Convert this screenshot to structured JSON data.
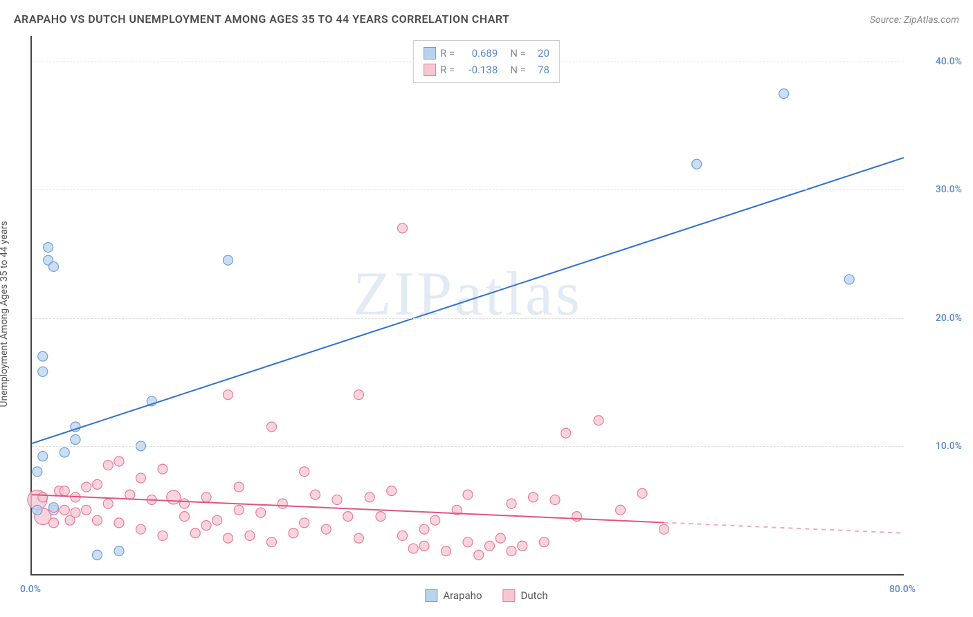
{
  "title": "ARAPAHO VS DUTCH UNEMPLOYMENT AMONG AGES 35 TO 44 YEARS CORRELATION CHART",
  "source": "Source: ZipAtlas.com",
  "ylabel": "Unemployment Among Ages 35 to 44 years",
  "watermark": "ZIPatlas",
  "chart": {
    "type": "scatter",
    "background_color": "#ffffff",
    "grid_color": "#dddddd",
    "axis_color": "#444444",
    "tick_color": "#5b8ac7",
    "xlim": [
      0,
      80
    ],
    "ylim": [
      0,
      42
    ],
    "xticks": [
      {
        "v": 0,
        "label": "0.0%"
      },
      {
        "v": 80,
        "label": "80.0%"
      }
    ],
    "yticks": [
      {
        "v": 10,
        "label": "10.0%"
      },
      {
        "v": 20,
        "label": "20.0%"
      },
      {
        "v": 30,
        "label": "30.0%"
      },
      {
        "v": 40,
        "label": "40.0%"
      }
    ],
    "series": [
      {
        "id": "arapaho",
        "label": "Arapaho",
        "color_fill": "#b9d3ef",
        "color_stroke": "#6f9ed6",
        "marker_radius": 7,
        "regression": {
          "R": 0.689,
          "N": 20,
          "x1": 0,
          "y1": 10.2,
          "x2": 80,
          "y2": 32.5,
          "color": "#2e6fd0",
          "width": 2,
          "dash_from_x": 80
        },
        "points": [
          {
            "x": 0.5,
            "y": 8.0
          },
          {
            "x": 0.5,
            "y": 5.0
          },
          {
            "x": 1,
            "y": 9.2
          },
          {
            "x": 1,
            "y": 15.8
          },
          {
            "x": 1,
            "y": 17.0
          },
          {
            "x": 1.5,
            "y": 24.5
          },
          {
            "x": 1.5,
            "y": 25.5
          },
          {
            "x": 2,
            "y": 24.0
          },
          {
            "x": 4,
            "y": 10.5
          },
          {
            "x": 4,
            "y": 11.5
          },
          {
            "x": 6,
            "y": 1.5
          },
          {
            "x": 8,
            "y": 1.8
          },
          {
            "x": 10,
            "y": 10.0
          },
          {
            "x": 11,
            "y": 13.5
          },
          {
            "x": 18,
            "y": 24.5
          },
          {
            "x": 61,
            "y": 32.0
          },
          {
            "x": 69,
            "y": 37.5
          },
          {
            "x": 75,
            "y": 23.0
          },
          {
            "x": 3,
            "y": 9.5
          },
          {
            "x": 2,
            "y": 5.2
          }
        ]
      },
      {
        "id": "dutch",
        "label": "Dutch",
        "color_fill": "#f6c7d2",
        "color_stroke": "#e77a9a",
        "marker_radius": 7,
        "regression": {
          "R": -0.138,
          "N": 78,
          "x1": 0,
          "y1": 6.2,
          "x2": 58,
          "y2": 4.0,
          "x3": 80,
          "y3": 3.2,
          "color": "#e0557e",
          "width": 2,
          "dash_from_x": 58
        },
        "points": [
          {
            "x": 0.5,
            "y": 5.8,
            "r": 14
          },
          {
            "x": 1,
            "y": 4.5,
            "r": 12
          },
          {
            "x": 1,
            "y": 6.0
          },
          {
            "x": 2,
            "y": 5.0
          },
          {
            "x": 2,
            "y": 4.0
          },
          {
            "x": 2.5,
            "y": 6.5
          },
          {
            "x": 3,
            "y": 5.0
          },
          {
            "x": 3,
            "y": 6.5
          },
          {
            "x": 3.5,
            "y": 4.2
          },
          {
            "x": 4,
            "y": 6.0
          },
          {
            "x": 4,
            "y": 4.8
          },
          {
            "x": 5,
            "y": 6.8
          },
          {
            "x": 5,
            "y": 5.0
          },
          {
            "x": 6,
            "y": 7.0
          },
          {
            "x": 6,
            "y": 4.2
          },
          {
            "x": 7,
            "y": 8.5
          },
          {
            "x": 7,
            "y": 5.5
          },
          {
            "x": 8,
            "y": 8.8
          },
          {
            "x": 8,
            "y": 4.0
          },
          {
            "x": 9,
            "y": 6.2
          },
          {
            "x": 10,
            "y": 7.5
          },
          {
            "x": 10,
            "y": 3.5
          },
          {
            "x": 11,
            "y": 5.8
          },
          {
            "x": 12,
            "y": 8.2
          },
          {
            "x": 12,
            "y": 3.0
          },
          {
            "x": 13,
            "y": 6.0,
            "r": 10
          },
          {
            "x": 14,
            "y": 4.5
          },
          {
            "x": 14,
            "y": 5.5
          },
          {
            "x": 15,
            "y": 3.2
          },
          {
            "x": 16,
            "y": 6.0
          },
          {
            "x": 16,
            "y": 3.8
          },
          {
            "x": 17,
            "y": 4.2
          },
          {
            "x": 18,
            "y": 14.0
          },
          {
            "x": 18,
            "y": 2.8
          },
          {
            "x": 19,
            "y": 5.0
          },
          {
            "x": 19,
            "y": 6.8
          },
          {
            "x": 20,
            "y": 3.0
          },
          {
            "x": 21,
            "y": 4.8
          },
          {
            "x": 22,
            "y": 11.5
          },
          {
            "x": 22,
            "y": 2.5
          },
          {
            "x": 23,
            "y": 5.5
          },
          {
            "x": 24,
            "y": 3.2
          },
          {
            "x": 25,
            "y": 4.0
          },
          {
            "x": 25,
            "y": 8.0
          },
          {
            "x": 26,
            "y": 6.2
          },
          {
            "x": 27,
            "y": 3.5
          },
          {
            "x": 28,
            "y": 5.8
          },
          {
            "x": 29,
            "y": 4.5
          },
          {
            "x": 30,
            "y": 14.0
          },
          {
            "x": 30,
            "y": 2.8
          },
          {
            "x": 31,
            "y": 6.0
          },
          {
            "x": 32,
            "y": 4.5
          },
          {
            "x": 33,
            "y": 6.5
          },
          {
            "x": 34,
            "y": 3.0
          },
          {
            "x": 34,
            "y": 27.0
          },
          {
            "x": 35,
            "y": 2.0
          },
          {
            "x": 36,
            "y": 3.5
          },
          {
            "x": 36,
            "y": 2.2
          },
          {
            "x": 37,
            "y": 4.2
          },
          {
            "x": 38,
            "y": 1.8
          },
          {
            "x": 39,
            "y": 5.0
          },
          {
            "x": 40,
            "y": 2.5
          },
          {
            "x": 40,
            "y": 6.2
          },
          {
            "x": 41,
            "y": 1.5
          },
          {
            "x": 42,
            "y": 2.2
          },
          {
            "x": 43,
            "y": 2.8
          },
          {
            "x": 44,
            "y": 5.5
          },
          {
            "x": 44,
            "y": 1.8
          },
          {
            "x": 45,
            "y": 2.2
          },
          {
            "x": 46,
            "y": 6.0
          },
          {
            "x": 47,
            "y": 2.5
          },
          {
            "x": 48,
            "y": 5.8
          },
          {
            "x": 49,
            "y": 11.0
          },
          {
            "x": 50,
            "y": 4.5
          },
          {
            "x": 52,
            "y": 12.0
          },
          {
            "x": 54,
            "y": 5.0
          },
          {
            "x": 56,
            "y": 6.3
          },
          {
            "x": 58,
            "y": 3.5
          }
        ]
      }
    ]
  },
  "legend_top": {
    "r_label": "R  =",
    "n_label": "N  =",
    "label_color": "#888888"
  },
  "legend_bottom": [
    {
      "label": "Arapaho",
      "fill": "#b9d3ef",
      "stroke": "#6f9ed6"
    },
    {
      "label": "Dutch",
      "fill": "#f6c7d2",
      "stroke": "#e77a9a"
    }
  ]
}
